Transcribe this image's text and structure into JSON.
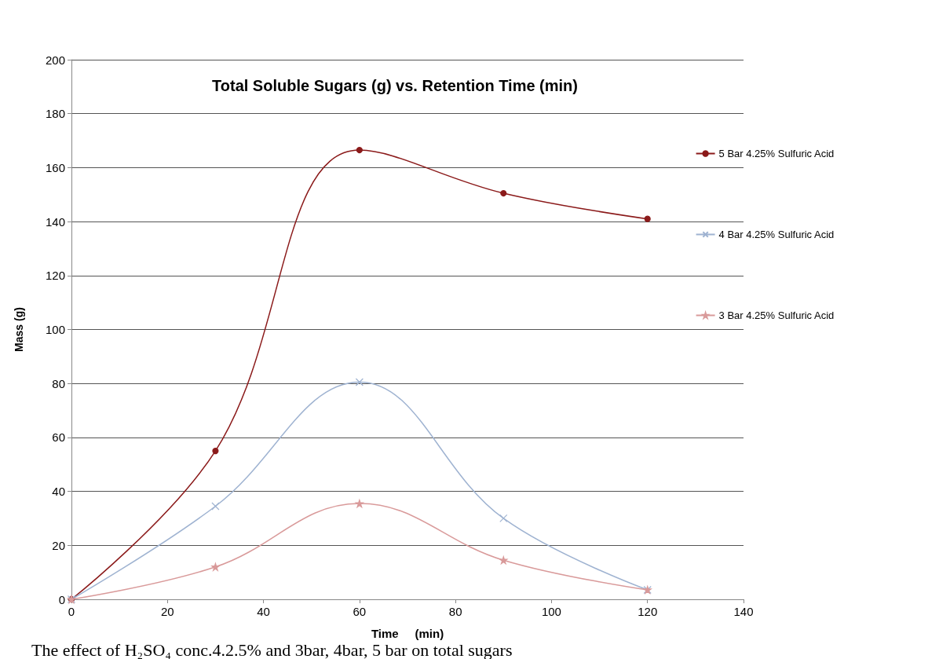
{
  "chart_data": {
    "type": "line",
    "title": "Total Soluble Sugars (g) vs. Retention Time (min)",
    "xlabel": "Time     (min)",
    "ylabel": "Mass (g)",
    "x": [
      0,
      30,
      60,
      90,
      120
    ],
    "series": [
      {
        "name": "5 Bar 4.25% Sulfuric Acid",
        "color": "#8b1a1a",
        "marker": "circle",
        "values": [
          0,
          55,
          166.5,
          150.5,
          141
        ]
      },
      {
        "name": "4 Bar 4.25% Sulfuric Acid",
        "color": "#9fb3d1",
        "marker": "cross",
        "values": [
          0,
          34.5,
          80.5,
          30,
          3.5
        ]
      },
      {
        "name": "3 Bar 4.25% Sulfuric Acid",
        "color": "#d99a9a",
        "marker": "star",
        "values": [
          0,
          12,
          35.5,
          14.5,
          3.5
        ]
      }
    ],
    "xlim": [
      0,
      140
    ],
    "xticks": [
      0,
      20,
      40,
      60,
      80,
      100,
      120,
      140
    ],
    "ylim": [
      0,
      200
    ],
    "yticks": [
      0,
      20,
      40,
      60,
      80,
      100,
      120,
      140,
      160,
      180,
      200
    ],
    "grid": "y",
    "legend": "right",
    "line_style": "solid",
    "annotations": [
      "The effect of H₂SO₄ conc.4.2.5% and 3bar, 4bar, 5 bar on total sugars"
    ]
  }
}
